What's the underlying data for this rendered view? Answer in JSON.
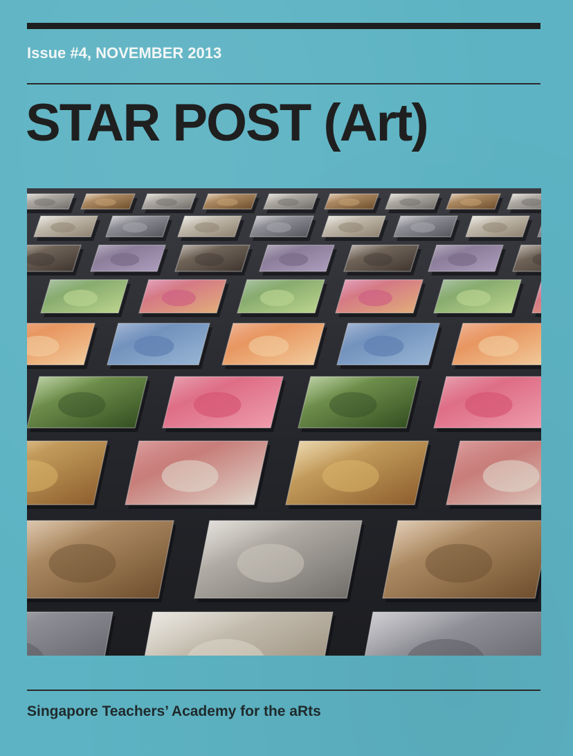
{
  "issue": "Issue #4, NOVEMBER 2013",
  "title": "STAR POST (Art)",
  "footer": "Singapore Teachers’ Academy for the aRts",
  "colors": {
    "background": "#5db3c3",
    "rule": "#1e1e1e",
    "title": "#1f1f1f",
    "issue_text": "#f2f6f6"
  },
  "cover_image": {
    "description_icon": "glass-art-tiles-photo"
  }
}
